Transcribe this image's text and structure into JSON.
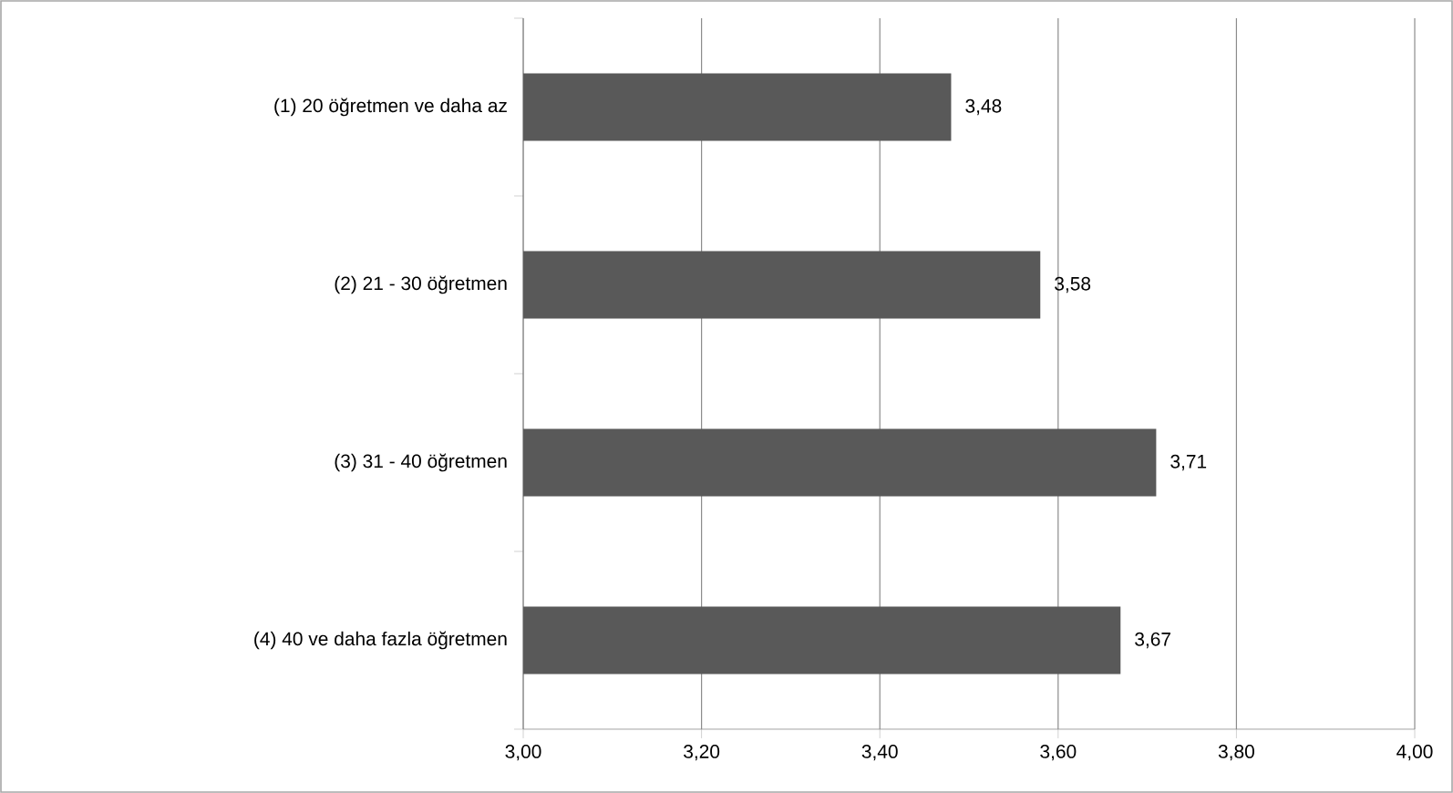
{
  "chart_data": {
    "type": "bar",
    "orientation": "horizontal",
    "categories": [
      "(1) 20 öğretmen ve daha az",
      "(2) 21 - 30 öğretmen",
      "(3) 31 - 40 öğretmen",
      "(4) 40 ve daha fazla öğretmen"
    ],
    "values": [
      3.48,
      3.58,
      3.71,
      3.67
    ],
    "value_labels": [
      "3,48",
      "3,58",
      "3,71",
      "3,67"
    ],
    "color": "#595959",
    "xlim": [
      3,
      4
    ],
    "xticks": [
      {
        "value": 3.0,
        "label": "3,00"
      },
      {
        "value": 3.2,
        "label": "3,20"
      },
      {
        "value": 3.4,
        "label": "3,40"
      },
      {
        "value": 3.6,
        "label": "3,60"
      },
      {
        "value": 3.8,
        "label": "3,80"
      },
      {
        "value": 4.0,
        "label": "4,00"
      }
    ],
    "grid": "x"
  }
}
